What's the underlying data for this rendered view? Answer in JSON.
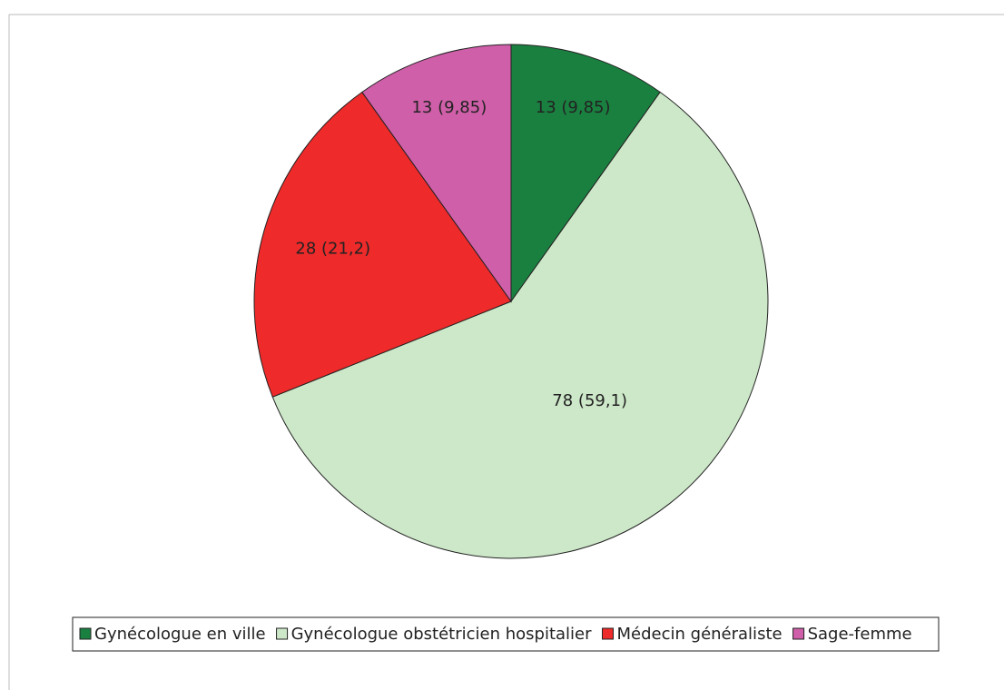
{
  "chart_data": {
    "type": "pie",
    "categories": [
      "Gynécologue en ville",
      "Gynécologue obstétricien hospitalier",
      "Médecin généraliste",
      "Sage-femme"
    ],
    "values": [
      13,
      78,
      28,
      13
    ],
    "value_labels": [
      "13 (9,85)",
      "78 (59,1)",
      "28 (21,2)",
      "13 (9,85)"
    ],
    "colors": [
      "#1a8040",
      "#cde8c8",
      "#ee2a2a",
      "#cf5fa8"
    ],
    "legend": "bottom"
  }
}
